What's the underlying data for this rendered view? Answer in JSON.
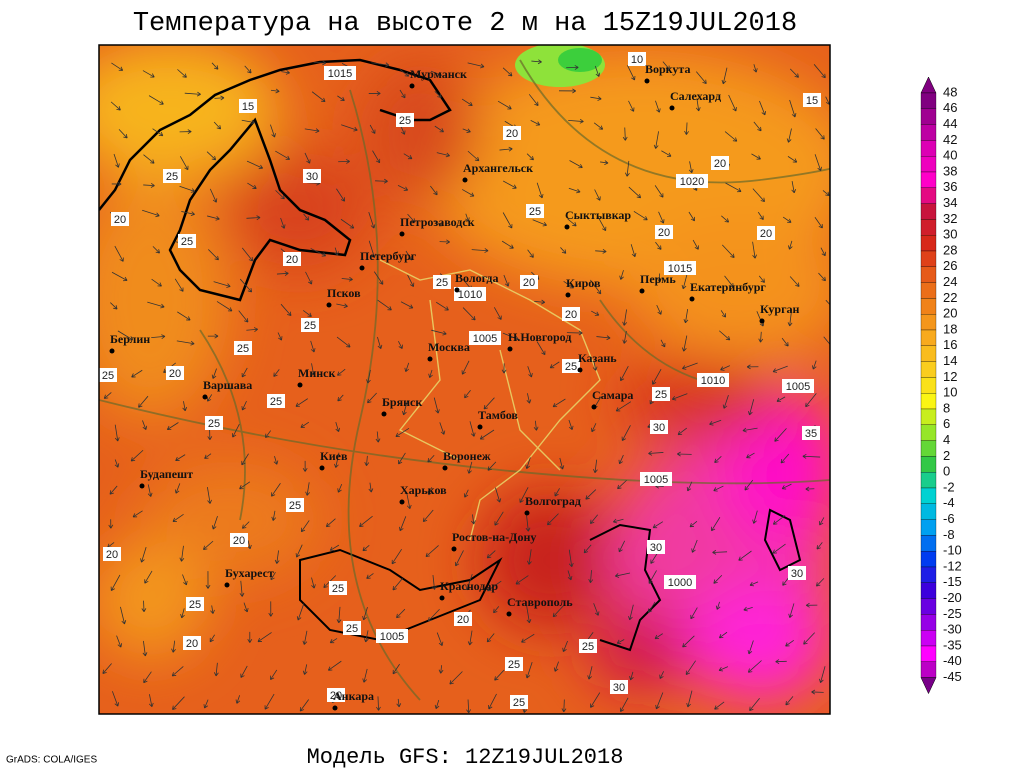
{
  "title": "Температура на высоте 2 м на 15Z19JUL2018",
  "subtitle": "Модель GFS: 12Z19JUL2018",
  "credit": "GrADS: COLA/IGES",
  "colorbar": {
    "labels": [
      48,
      46,
      44,
      42,
      40,
      38,
      36,
      34,
      32,
      30,
      28,
      26,
      24,
      22,
      20,
      18,
      16,
      14,
      12,
      10,
      8,
      6,
      4,
      2,
      0,
      -2,
      -4,
      -6,
      -8,
      -10,
      -12,
      -15,
      -20,
      -25,
      -30,
      -35,
      -40,
      -45
    ]
  },
  "cities": [
    "Мурманск",
    "Воркута",
    "Салехард",
    "Архангельск",
    "Сыктывкар",
    "Петрозаводск",
    "Петербург",
    "Вологда",
    "Киров",
    "Пермь",
    "Екатеринбург",
    "Курган",
    "Псков",
    "Берлин",
    "Н.Новгород",
    "Москва",
    "Казань",
    "Минск",
    "Варшава",
    "Самара",
    "Брянск",
    "Тамбов",
    "Киев",
    "Воронеж",
    "Будапешт",
    "Харьков",
    "Волгоград",
    "Ростов-на-Дону",
    "Бухарест",
    "Краснодар",
    "Ставрополь",
    "Анкара"
  ],
  "contour_labels": [
    1015,
    10,
    15,
    15,
    20,
    25,
    20,
    1020,
    25,
    30,
    20,
    25,
    20,
    20,
    25,
    20,
    1015,
    25,
    1010,
    20,
    20,
    25,
    1005,
    25,
    20,
    25,
    25,
    1010,
    1005,
    25,
    25,
    25,
    30,
    35,
    1005,
    25,
    20,
    20,
    30,
    25,
    1000,
    30,
    25,
    20,
    25,
    1005,
    20,
    25,
    25,
    30,
    25,
    20
  ]
}
